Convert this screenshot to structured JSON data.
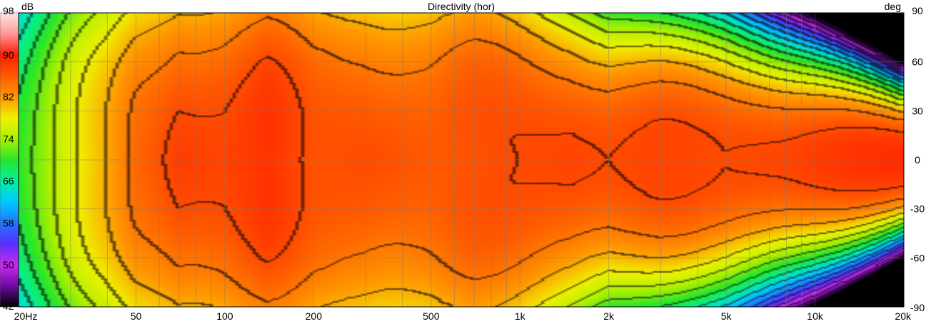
{
  "chart_data": {
    "type": "heatmap",
    "title": "Directivity (hor)",
    "colorbar": {
      "unit": "dB",
      "tick_labels": [
        "98",
        "90",
        "82",
        "74",
        "66",
        "58",
        "50",
        "42"
      ],
      "range": [
        42,
        98
      ],
      "colors": [
        [
          42,
          "#000000"
        ],
        [
          46,
          "#6e0aa0"
        ],
        [
          50,
          "#c82cf0"
        ],
        [
          54,
          "#5a2cff"
        ],
        [
          58,
          "#1e78ff"
        ],
        [
          62,
          "#00c8ff"
        ],
        [
          66,
          "#00f0a0"
        ],
        [
          70,
          "#28e628"
        ],
        [
          74,
          "#aaf000"
        ],
        [
          78,
          "#f0f000"
        ],
        [
          82,
          "#ff9600"
        ],
        [
          90,
          "#ff1e00"
        ],
        [
          94,
          "#ff9696"
        ],
        [
          98,
          "#ffe6e6"
        ]
      ]
    },
    "x_axis": {
      "scale": "log",
      "range_hz": [
        20,
        20000
      ],
      "ticks": [
        {
          "value": 20,
          "label": "20Hz"
        },
        {
          "value": 50,
          "label": "50"
        },
        {
          "value": 100,
          "label": "100"
        },
        {
          "value": 200,
          "label": "200"
        },
        {
          "value": 500,
          "label": "500"
        },
        {
          "value": 1000,
          "label": "1k"
        },
        {
          "value": 2000,
          "label": "2k"
        },
        {
          "value": 5000,
          "label": "5k"
        },
        {
          "value": 10000,
          "label": "10k"
        },
        {
          "value": 20000,
          "label": "20k"
        }
      ]
    },
    "y_axis": {
      "unit": "deg",
      "range": [
        -90,
        90
      ],
      "ticks": [
        "90",
        "60",
        "30",
        "0",
        "-30",
        "-60",
        "-90"
      ]
    },
    "grid": true,
    "contour_step_db": 3,
    "on_axis_db": [
      {
        "f": 20,
        "db": 70
      },
      {
        "f": 24,
        "db": 73
      },
      {
        "f": 30,
        "db": 77
      },
      {
        "f": 40,
        "db": 81
      },
      {
        "f": 50,
        "db": 85
      },
      {
        "f": 70,
        "db": 88
      },
      {
        "f": 100,
        "db": 87.5
      },
      {
        "f": 140,
        "db": 88.5
      },
      {
        "f": 200,
        "db": 86.5
      },
      {
        "f": 300,
        "db": 87
      },
      {
        "f": 500,
        "db": 86
      },
      {
        "f": 700,
        "db": 86.5
      },
      {
        "f": 1000,
        "db": 87
      },
      {
        "f": 1500,
        "db": 87.5
      },
      {
        "f": 2000,
        "db": 87
      },
      {
        "f": 3000,
        "db": 87.5
      },
      {
        "f": 5000,
        "db": 87
      },
      {
        "f": 8000,
        "db": 87.5
      },
      {
        "f": 13000,
        "db": 88.5
      },
      {
        "f": 20000,
        "db": 89
      }
    ],
    "beamwidth_6db_deg": [
      {
        "f": 20,
        "deg": 90
      },
      {
        "f": 700,
        "deg": 90
      },
      {
        "f": 1000,
        "deg": 80
      },
      {
        "f": 2000,
        "deg": 60
      },
      {
        "f": 3000,
        "deg": 55
      },
      {
        "f": 5000,
        "deg": 50
      },
      {
        "f": 10000,
        "deg": 38
      },
      {
        "f": 20000,
        "deg": 25
      }
    ],
    "beamwidth_12db_deg": [
      {
        "f": 20,
        "deg": 180
      },
      {
        "f": 1000,
        "deg": 180
      },
      {
        "f": 3000,
        "deg": 75
      },
      {
        "f": 5000,
        "deg": 70
      },
      {
        "f": 10000,
        "deg": 60
      },
      {
        "f": 20000,
        "deg": 50
      }
    ]
  }
}
